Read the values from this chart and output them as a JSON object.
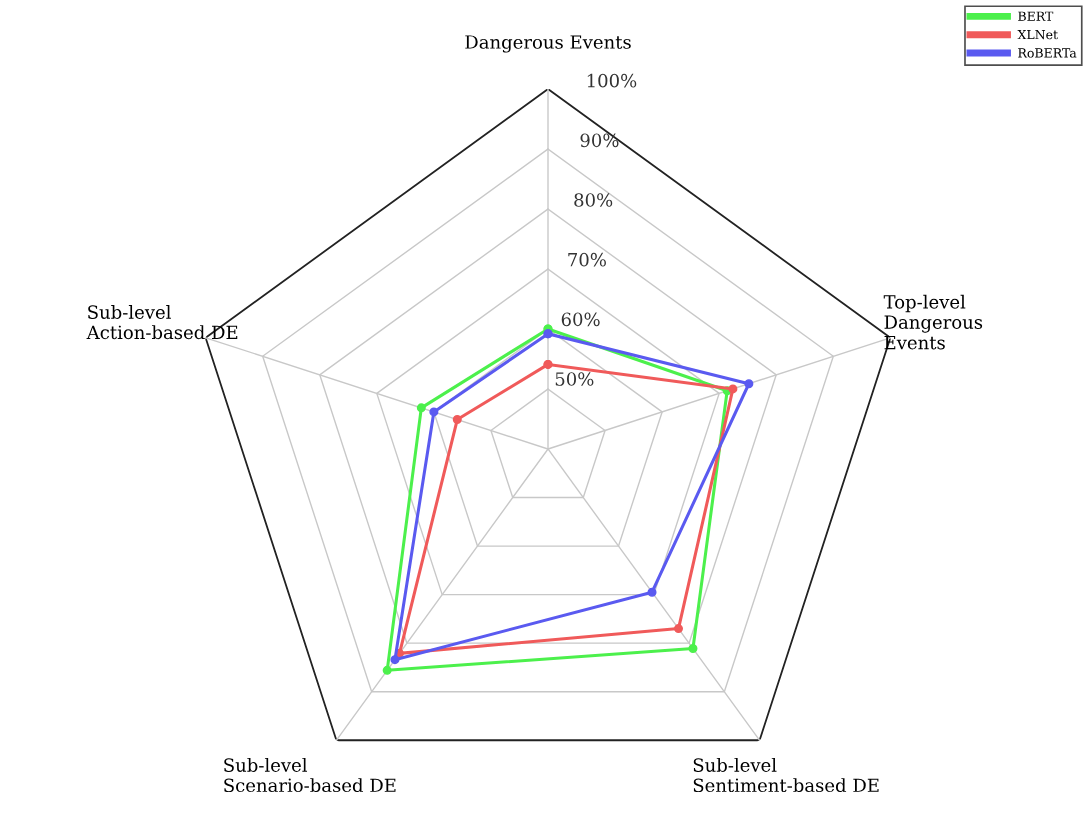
{
  "chart_data": {
    "type": "radar",
    "categories": [
      "Dangerous Events",
      "Top-level\nDangerous\nEvents",
      "Sub-level\nSentiment-based DE",
      "Sub-level\nScenario-based DE",
      "Sub-level\nAction-based DE"
    ],
    "series": [
      {
        "name": "BERT",
        "color": "#4cf04c",
        "values": [
          60,
          71.4,
          81.1,
          85.6,
          62.2
        ]
      },
      {
        "name": "XLNet",
        "color": "#f05a5a",
        "values": [
          54.1,
          72.4,
          77,
          82.1,
          55.9
        ]
      },
      {
        "name": "RoBERTa",
        "color": "#5a5af0",
        "values": [
          59.2,
          75.2,
          69.5,
          83.4,
          60
        ]
      }
    ],
    "ylim": [
      40,
      100
    ],
    "yticks": [
      {
        "value": 50,
        "label": "50%"
      },
      {
        "value": 60,
        "label": "60%"
      },
      {
        "value": 70,
        "label": "70%"
      },
      {
        "value": 80,
        "label": "80%"
      },
      {
        "value": 90,
        "label": "90%"
      },
      {
        "value": 100,
        "label": "100%"
      }
    ],
    "marker": "circle",
    "legend": "top right",
    "grid": true
  }
}
